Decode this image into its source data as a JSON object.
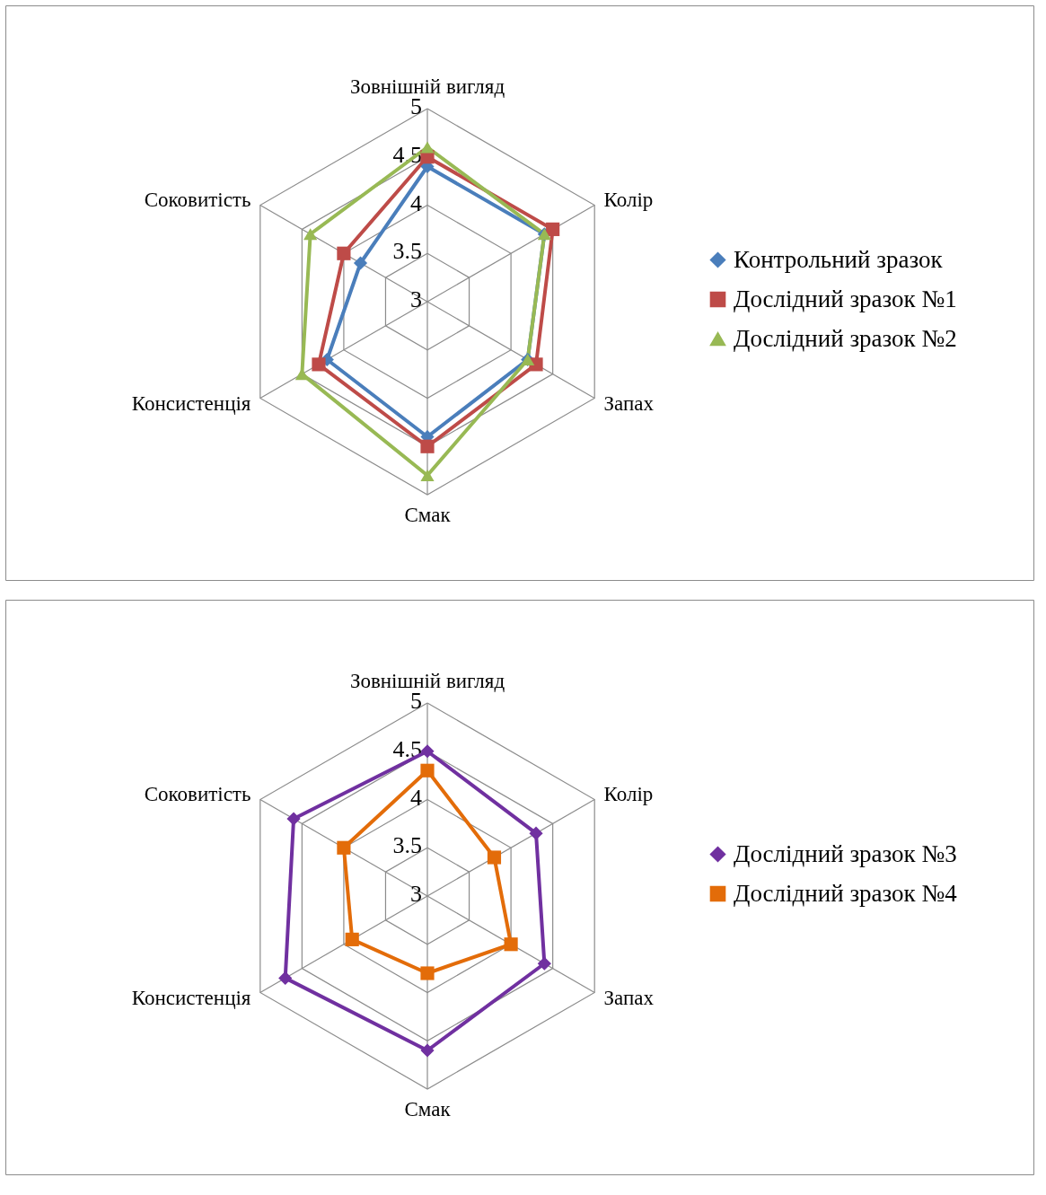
{
  "chart_data": [
    {
      "type": "radar",
      "categories": [
        "Зовнішній вигляд",
        "Колір",
        "Запах",
        "Смак",
        "Консистенція",
        "Соковитість"
      ],
      "ylim": [
        3,
        5
      ],
      "yticks": [
        3,
        3.5,
        4,
        4.5,
        5
      ],
      "grid": true,
      "legend": "right",
      "series": [
        {
          "name": "Контрольний зразок",
          "color": "#4a7ebb",
          "marker": "diamond",
          "values": [
            4.4,
            4.4,
            4.2,
            4.4,
            4.2,
            3.8
          ]
        },
        {
          "name": "Дослідний зразок №1",
          "color": "#be4b48",
          "marker": "square",
          "values": [
            4.5,
            4.5,
            4.3,
            4.5,
            4.3,
            4.0
          ]
        },
        {
          "name": "Дослідний зразок №2",
          "color": "#98b954",
          "marker": "triangle",
          "values": [
            4.6,
            4.4,
            4.2,
            4.8,
            4.5,
            4.4
          ]
        }
      ]
    },
    {
      "type": "radar",
      "categories": [
        "Зовнішній вигляд",
        "Колір",
        "Запах",
        "Смак",
        "Консистенція",
        "Соковитість"
      ],
      "ylim": [
        3,
        5
      ],
      "yticks": [
        3,
        3.5,
        4,
        4.5,
        5
      ],
      "grid": true,
      "legend": "right",
      "series": [
        {
          "name": "Дослідний зразок №3",
          "color": "#7030a0",
          "marker": "diamond",
          "values": [
            4.5,
            4.3,
            4.4,
            4.6,
            4.7,
            4.6
          ]
        },
        {
          "name": "Дослідний зразок №4",
          "color": "#e36c09",
          "marker": "square",
          "values": [
            4.3,
            3.8,
            4.0,
            3.8,
            3.9,
            4.0
          ]
        }
      ]
    }
  ]
}
